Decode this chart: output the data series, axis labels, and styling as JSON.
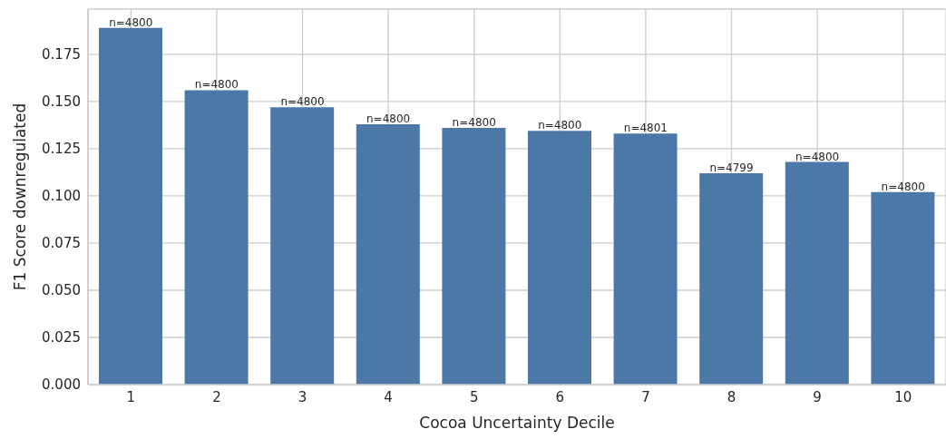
{
  "chart_data": {
    "type": "bar",
    "xlabel": "Cocoa Uncertainty Decile",
    "ylabel": "F1 Score downregulated",
    "categories": [
      "1",
      "2",
      "3",
      "4",
      "5",
      "6",
      "7",
      "8",
      "9",
      "10"
    ],
    "values": [
      0.189,
      0.156,
      0.147,
      0.138,
      0.136,
      0.1345,
      0.133,
      0.112,
      0.118,
      0.102
    ],
    "annotations": [
      {
        "text": "n=4800",
        "x": "1",
        "y": 0.189
      },
      {
        "text": "n=4800",
        "x": "2",
        "y": 0.156
      },
      {
        "text": "n=4800",
        "x": "3",
        "y": 0.147
      },
      {
        "text": "n=4800",
        "x": "4",
        "y": 0.138
      },
      {
        "text": "n=4800",
        "x": "5",
        "y": 0.136
      },
      {
        "text": "n=4800",
        "x": "6",
        "y": 0.1345
      },
      {
        "text": "n=4801",
        "x": "7",
        "y": 0.133
      },
      {
        "text": "n=4799",
        "x": "8",
        "y": 0.112
      },
      {
        "text": "n=4800",
        "x": "9",
        "y": 0.118
      },
      {
        "text": "n=4800",
        "x": "10",
        "y": 0.102
      }
    ],
    "color": "#4c78a8",
    "ylim": [
      0,
      0.199
    ],
    "yticks": [
      {
        "value": 0,
        "label": "0.000"
      },
      {
        "value": 0.025,
        "label": "0.025"
      },
      {
        "value": 0.05,
        "label": "0.050"
      },
      {
        "value": 0.075,
        "label": "0.075"
      },
      {
        "value": 0.1,
        "label": "0.100"
      },
      {
        "value": 0.125,
        "label": "0.125"
      },
      {
        "value": 0.15,
        "label": "0.150"
      },
      {
        "value": 0.175,
        "label": "0.175"
      }
    ],
    "grid": true
  }
}
